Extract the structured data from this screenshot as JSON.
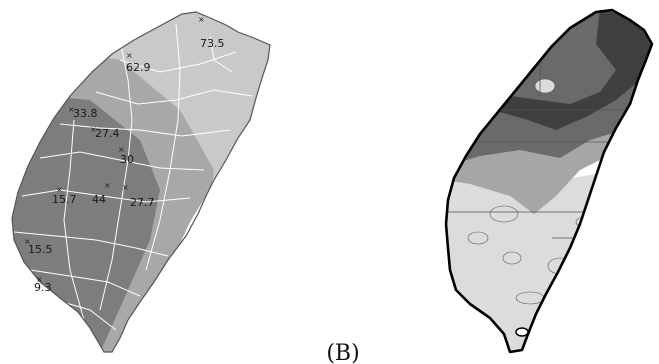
{
  "figure": {
    "caption": "(B)"
  },
  "map_a": {
    "station_labels": [
      "73.5",
      "62.9",
      "33.8",
      "27.4",
      "30",
      "15.7",
      "44",
      "27.7",
      "15.5",
      "9.3"
    ],
    "colors": {
      "land_light": "#c9c9c9",
      "band_mid": "#a8a8a8",
      "band_dark": "#7d7d7d",
      "boundary": "#ffffff",
      "outline": "#555555"
    }
  },
  "map_b": {
    "colors": {
      "land_white": "#ffffff",
      "shade_light": "#dcdcdc",
      "shade_mid": "#a6a6a6",
      "shade_dark": "#6a6a6a",
      "shade_darkest": "#3f3f3f",
      "outline": "#000000"
    }
  }
}
